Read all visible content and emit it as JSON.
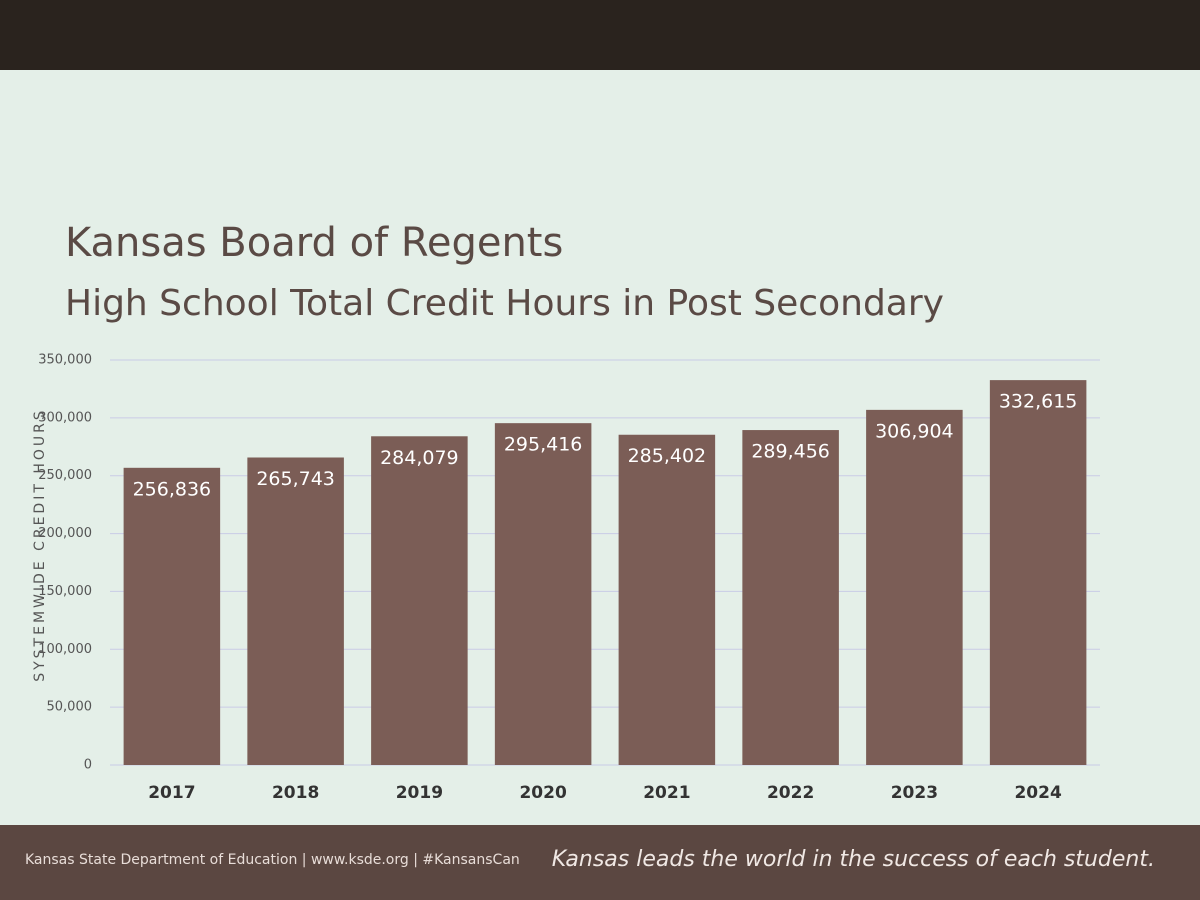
{
  "chart_data": {
    "type": "bar",
    "title": "Kansas Board of Regents",
    "subtitle": "High School Total Credit Hours in Post Secondary",
    "y_label": "SYSTEMWIDE CREDIT HOURS",
    "categories": [
      "2017",
      "2018",
      "2019",
      "2020",
      "2021",
      "2022",
      "2023",
      "2024"
    ],
    "values": [
      256836,
      265743,
      284079,
      295416,
      285402,
      289456,
      306904,
      332615
    ],
    "value_labels": [
      "256,836",
      "265,743",
      "284,079",
      "295,416",
      "285,402",
      "289,456",
      "306,904",
      "332,615"
    ],
    "color": "#7b5d56",
    "ylim": [
      0,
      350000
    ],
    "yticks": [
      0,
      {
        "value": 50000,
        "label": "50,000"
      },
      {
        "value": 100000,
        "label": "100,000"
      },
      {
        "value": 150000,
        "label": "150,000"
      },
      {
        "value": 200000,
        "label": "200,000"
      },
      {
        "value": 250000,
        "label": "250,000"
      },
      {
        "value": 300000,
        "label": "300,000"
      },
      {
        "value": 350000,
        "label": "350,000"
      }
    ],
    "grid": true
  },
  "footer": {
    "left": "Kansas State Department of Education | www.ksde.org | #KansansCan",
    "right": "Kansas leads the world in the success of each student."
  }
}
